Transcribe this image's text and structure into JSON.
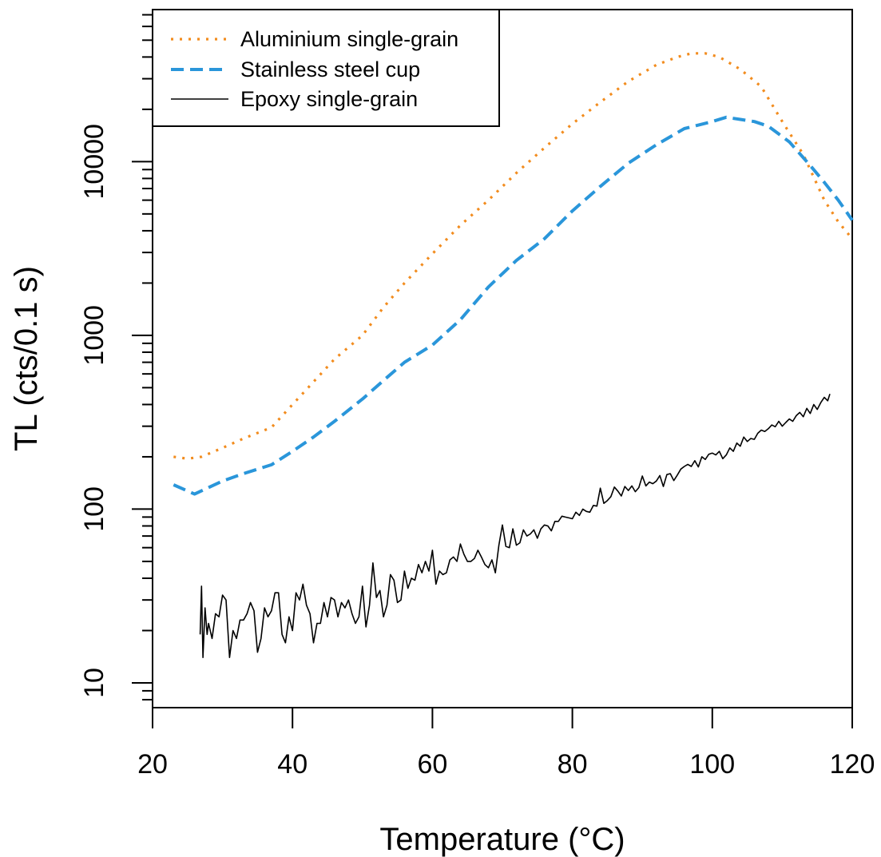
{
  "chart_data": {
    "type": "line",
    "xlabel": "Temperature (°C)",
    "ylabel": "TL (cts/0.1 s)",
    "xlim": [
      20,
      120
    ],
    "ylim": [
      7.2,
      75000
    ],
    "yscale": "log",
    "xticks": [
      20,
      40,
      60,
      80,
      100,
      120
    ],
    "yticks": [
      10,
      100,
      1000,
      10000
    ],
    "xtick_labels": [
      "20",
      "40",
      "60",
      "80",
      "100",
      "120"
    ],
    "ytick_labels": [
      "10",
      "100",
      "1000",
      "10000"
    ],
    "legend_position": "top-left",
    "series": [
      {
        "name": "Aluminium single-grain",
        "color": "#F28C1E",
        "style": "dotted",
        "x": [
          23,
          25,
          27,
          30,
          33,
          37,
          40,
          43,
          46,
          50,
          53,
          56,
          60,
          64,
          68,
          72,
          76,
          80,
          84,
          88,
          92,
          95,
          97,
          99,
          101,
          104,
          107,
          110,
          113,
          116,
          118,
          120
        ],
        "y": [
          200,
          195,
          200,
          225,
          255,
          295,
          400,
          540,
          730,
          1000,
          1450,
          2000,
          2950,
          4300,
          6000,
          8600,
          12000,
          16500,
          22000,
          29000,
          36000,
          40000,
          42000,
          42000,
          40000,
          34000,
          27000,
          17000,
          11000,
          6000,
          4500,
          3600
        ]
      },
      {
        "name": "Stainless steel cup",
        "color": "#2A96DA",
        "style": "dashed",
        "x": [
          23,
          26,
          30,
          33,
          37,
          40,
          43,
          46,
          50,
          53,
          56,
          60,
          64,
          68,
          72,
          76,
          80,
          84,
          88,
          92,
          96,
          100,
          102,
          104,
          106,
          108,
          111,
          114,
          116,
          118,
          120
        ],
        "y": [
          138,
          122,
          145,
          160,
          180,
          215,
          260,
          320,
          430,
          550,
          700,
          880,
          1230,
          1900,
          2700,
          3600,
          5200,
          7200,
          9800,
          12500,
          15500,
          17000,
          18000,
          17500,
          17000,
          16000,
          13000,
          9500,
          7600,
          6000,
          4600
        ]
      },
      {
        "name": "Epoxy single-grain",
        "color": "#000000",
        "style": "solid",
        "x": [
          26.8,
          27.0,
          27.2,
          27.5,
          27.8,
          28.0,
          28.5,
          29.0,
          29.5,
          30.0,
          30.5,
          31.0,
          31.5,
          32.0,
          32.5,
          33.0,
          33.5,
          34.0,
          34.5,
          35.0,
          35.5,
          36.0,
          36.5,
          37.0,
          37.5,
          38.0,
          38.5,
          39.0,
          39.5,
          40.0,
          40.5,
          41.0,
          41.5,
          42.0,
          42.5,
          43.0,
          43.5,
          44.0,
          44.5,
          45.0,
          45.5,
          46.0,
          46.5,
          47.0,
          47.5,
          48.0,
          48.5,
          49.0,
          49.5,
          50.0,
          50.5,
          51.0,
          51.5,
          52.0,
          52.5,
          53.0,
          53.5,
          54.0,
          54.5,
          55.0,
          55.5,
          56.0,
          56.5,
          57.0,
          57.5,
          58.0,
          58.5,
          59.0,
          59.5,
          60.0,
          60.5,
          61.0,
          61.5,
          62.0,
          62.5,
          63.0,
          63.5,
          64.0,
          64.5,
          65.0,
          65.5,
          66.0,
          66.5,
          67.0,
          67.5,
          68.0,
          68.5,
          69.0,
          69.5,
          70.0,
          70.5,
          71.0,
          71.5,
          72.0,
          72.5,
          73.0,
          73.5,
          74.0,
          74.5,
          75.0,
          75.5,
          76.0,
          76.5,
          77.0,
          77.5,
          78.0,
          78.5,
          79.0,
          79.5,
          80.0,
          80.5,
          81.0,
          81.5,
          82.0,
          82.5,
          83.0,
          83.5,
          84.0,
          84.5,
          85.0,
          85.5,
          86.0,
          86.5,
          87.0,
          87.5,
          88.0,
          88.5,
          89.0,
          89.5,
          90.0,
          90.5,
          91.0,
          91.5,
          92.0,
          92.5,
          93.0,
          93.5,
          94.0,
          94.5,
          95.0,
          95.5,
          96.0,
          96.5,
          97.0,
          97.5,
          98.0,
          98.5,
          99.0,
          99.5,
          100.0,
          100.5,
          101.0,
          101.5,
          102.0,
          102.5,
          103.0,
          103.5,
          104.0,
          104.5,
          105.0,
          105.5,
          106.0,
          106.5,
          107.0,
          107.5,
          108.0,
          108.5,
          109.0,
          109.5,
          110.0,
          110.5,
          111.0,
          111.5,
          112.0,
          112.5,
          113.0,
          113.5,
          114.0,
          114.5,
          115.0,
          115.5,
          116.0,
          116.5,
          116.8
        ],
        "y": [
          19,
          36,
          14,
          27,
          19,
          22,
          18,
          25,
          24,
          32,
          30,
          14,
          20,
          18,
          23,
          23,
          25,
          29,
          26,
          15,
          18,
          27,
          24,
          26,
          33,
          33,
          19,
          17,
          24,
          20,
          33,
          30,
          37,
          28,
          25,
          17,
          22,
          22,
          29,
          24,
          31,
          30,
          24,
          29,
          27,
          30,
          25,
          22,
          24,
          36,
          21,
          28,
          49,
          31,
          34,
          24,
          28,
          42,
          39,
          29,
          30,
          44,
          35,
          40,
          39,
          48,
          43,
          50,
          44,
          58,
          37,
          44,
          42,
          43,
          51,
          53,
          50,
          63,
          55,
          50,
          50,
          52,
          58,
          53,
          48,
          46,
          51,
          43,
          62,
          81,
          61,
          60,
          77,
          62,
          64,
          76,
          70,
          72,
          76,
          68,
          77,
          81,
          80,
          75,
          85,
          85,
          91,
          90,
          89,
          88,
          96,
          92,
          100,
          97,
          96,
          105,
          104,
          132,
          108,
          112,
          118,
          134,
          127,
          119,
          135,
          128,
          136,
          126,
          133,
          155,
          136,
          143,
          140,
          145,
          156,
          135,
          158,
          160,
          146,
          157,
          170,
          176,
          181,
          176,
          190,
          175,
          200,
          193,
          207,
          210,
          205,
          215,
          195,
          205,
          225,
          215,
          240,
          230,
          260,
          245,
          255,
          252,
          273,
          285,
          280,
          290,
          305,
          298,
          320,
          300,
          315,
          330,
          320,
          345,
          360,
          340,
          380,
          355,
          400,
          375,
          410,
          440,
          420,
          460
        ]
      }
    ]
  }
}
